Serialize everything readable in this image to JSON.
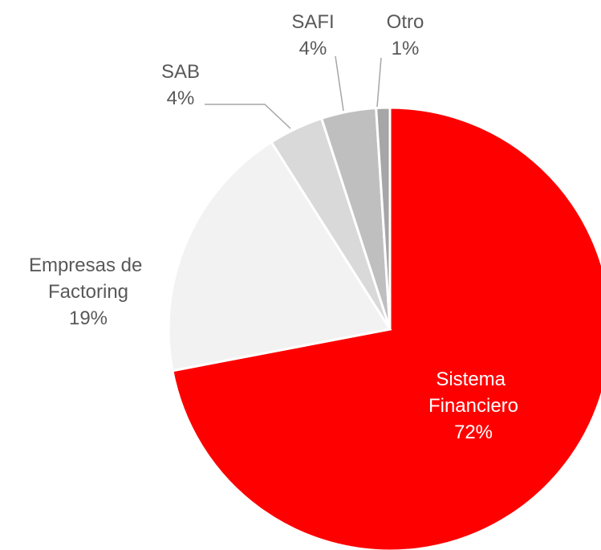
{
  "chart_data": {
    "type": "pie",
    "categories": [
      "Sistema Financiero",
      "Empresas de Factoring",
      "SAB",
      "SAFI",
      "Otro"
    ],
    "values": [
      72,
      19,
      4,
      4,
      1
    ],
    "value_labels": [
      "72%",
      "19%",
      "4%",
      "4%",
      "1%"
    ],
    "colors": [
      "#ff0000",
      "#f2f2f2",
      "#d9d9d9",
      "#bfbfbf",
      "#a6a6a6"
    ]
  }
}
